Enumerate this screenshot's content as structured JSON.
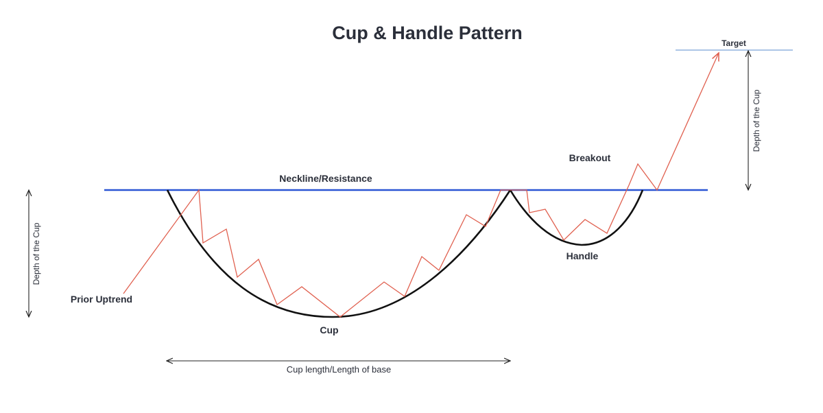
{
  "title": "Cup & Handle Pattern",
  "labels": {
    "target": "Target",
    "breakout": "Breakout",
    "neckline": "Neckline/Resistance",
    "handle": "Handle",
    "cup": "Cup",
    "prior_uptrend": "Prior Uptrend",
    "cup_length": "Cup length/Length of base",
    "depth_left": "Depth of the Cup",
    "depth_right": "Depth of the Cup"
  },
  "colors": {
    "text": "#2b2f3a",
    "neckline": "#2a55d4",
    "target_line": "#7aa2d8",
    "price_line": "#e0604f",
    "curve": "#111111",
    "arrow": "#222222"
  }
}
